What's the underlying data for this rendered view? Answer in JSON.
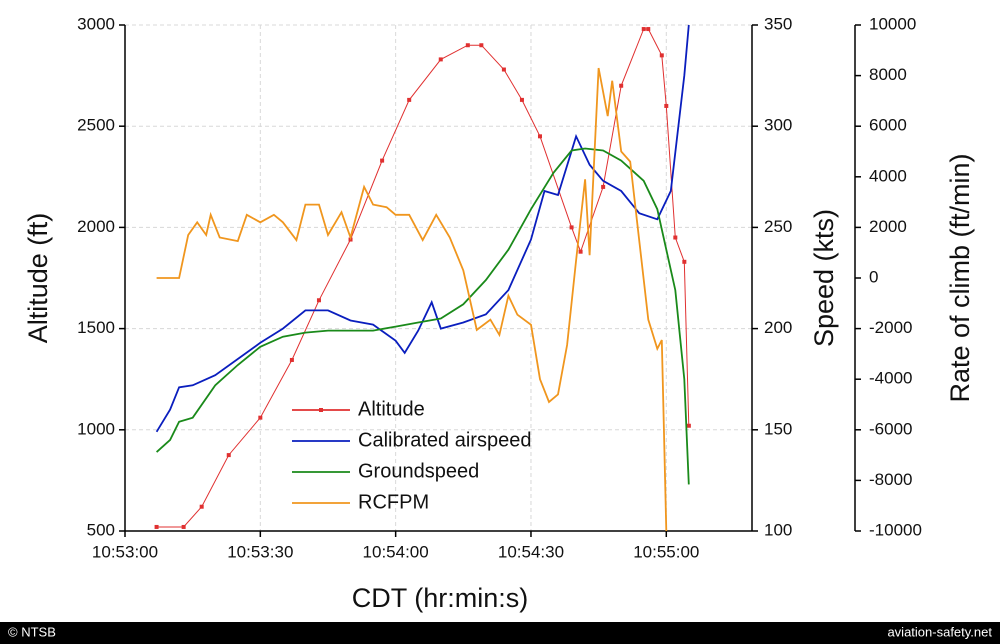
{
  "chart_data": {
    "type": "line",
    "xlabel": "CDT (hr:min:s)",
    "ylabel": "Altitude (ft)",
    "y2label": "Speed (kts)",
    "y3label": "Rate of climb (ft/min)",
    "xlim": [
      "10:53:00",
      "10:55:19"
    ],
    "xticks": [
      "10:53:00",
      "10:53:30",
      "10:54:00",
      "10:54:30",
      "10:55:00"
    ],
    "ylim": [
      500,
      3000
    ],
    "yticks": [
      500,
      1000,
      1500,
      2000,
      2500,
      3000
    ],
    "y2lim": [
      100,
      350
    ],
    "y2ticks": [
      100,
      150,
      200,
      250,
      300,
      350
    ],
    "y3lim": [
      -10000,
      10000
    ],
    "y3ticks": [
      -10000,
      -8000,
      -6000,
      -4000,
      -2000,
      0,
      2000,
      4000,
      6000,
      8000,
      10000
    ],
    "grid": true,
    "legend": "bottom-center",
    "series": [
      {
        "name": "Altitude",
        "color": "#e03030",
        "axis": "y",
        "markers": true,
        "x": [
          "10:53:07",
          "10:53:13",
          "10:53:17",
          "10:53:23",
          "10:53:30",
          "10:53:37",
          "10:53:43",
          "10:53:50",
          "10:53:57",
          "10:54:03",
          "10:54:10",
          "10:54:16",
          "10:54:19",
          "10:54:24",
          "10:54:28",
          "10:54:32",
          "10:54:39",
          "10:54:41",
          "10:54:46",
          "10:54:50",
          "10:54:55",
          "10:54:56",
          "10:54:59",
          "10:55:00",
          "10:55:02",
          "10:55:04",
          "10:55:05"
        ],
        "values": [
          520,
          520,
          620,
          875,
          1060,
          1345,
          1640,
          1940,
          2330,
          2630,
          2830,
          2900,
          2900,
          2780,
          2630,
          2450,
          2000,
          1880,
          2200,
          2700,
          2980,
          2980,
          2850,
          2600,
          1950,
          1830,
          1020
        ]
      },
      {
        "name": "Calibrated airspeed",
        "color": "#0a1ebe",
        "axis": "y2",
        "x": [
          "10:53:07",
          "10:53:10",
          "10:53:12",
          "10:53:15",
          "10:53:20",
          "10:53:25",
          "10:53:30",
          "10:53:35",
          "10:53:40",
          "10:53:45",
          "10:53:50",
          "10:53:55",
          "10:54:00",
          "10:54:02",
          "10:54:05",
          "10:54:08",
          "10:54:10",
          "10:54:15",
          "10:54:20",
          "10:54:25",
          "10:54:30",
          "10:54:33",
          "10:54:36",
          "10:54:40",
          "10:54:43",
          "10:54:46",
          "10:54:50",
          "10:54:54",
          "10:54:58",
          "10:55:01",
          "10:55:04",
          "10:55:05"
        ],
        "values": [
          149,
          160,
          171,
          172,
          177,
          185,
          193,
          200,
          209,
          209,
          204,
          202,
          194,
          188,
          199,
          213,
          200,
          203,
          207,
          219,
          244,
          268,
          266,
          295,
          281,
          273,
          268,
          257,
          254,
          268,
          325,
          350
        ]
      },
      {
        "name": "Groundspeed",
        "color": "#1a8a1a",
        "axis": "y2",
        "x": [
          "10:53:07",
          "10:53:10",
          "10:53:12",
          "10:53:15",
          "10:53:20",
          "10:53:25",
          "10:53:30",
          "10:53:35",
          "10:53:40",
          "10:53:45",
          "10:53:50",
          "10:53:55",
          "10:54:00",
          "10:54:05",
          "10:54:10",
          "10:54:15",
          "10:54:20",
          "10:54:25",
          "10:54:30",
          "10:54:35",
          "10:54:39",
          "10:54:42",
          "10:54:46",
          "10:54:50",
          "10:54:55",
          "10:54:58",
          "10:55:02",
          "10:55:04",
          "10:55:05"
        ],
        "values": [
          139,
          145,
          154,
          156,
          172,
          182,
          191,
          196,
          198,
          199,
          199,
          199,
          201,
          203,
          205,
          212,
          224,
          239,
          259,
          277,
          288,
          289,
          288,
          283,
          273,
          259,
          219,
          175,
          123
        ]
      },
      {
        "name": "RCFPM",
        "color": "#f0961e",
        "axis": "y3",
        "x": [
          "10:53:07",
          "10:53:12",
          "10:53:14",
          "10:53:16",
          "10:53:18",
          "10:53:19",
          "10:53:21",
          "10:53:25",
          "10:53:27",
          "10:53:30",
          "10:53:33",
          "10:53:35",
          "10:53:38",
          "10:53:40",
          "10:53:43",
          "10:53:45",
          "10:53:48",
          "10:53:50",
          "10:53:53",
          "10:53:55",
          "10:53:58",
          "10:54:00",
          "10:54:03",
          "10:54:06",
          "10:54:09",
          "10:54:12",
          "10:54:15",
          "10:54:18",
          "10:54:21",
          "10:54:23",
          "10:54:25",
          "10:54:27",
          "10:54:30",
          "10:54:32",
          "10:54:34",
          "10:54:36",
          "10:54:38",
          "10:54:40",
          "10:54:42",
          "10:54:43",
          "10:54:45",
          "10:54:47",
          "10:54:48",
          "10:54:50",
          "10:54:52",
          "10:54:56",
          "10:54:58",
          "10:54:59",
          "10:55:00"
        ],
        "values": [
          0,
          0,
          1700,
          2200,
          1700,
          2500,
          1600,
          1460,
          2500,
          2200,
          2500,
          2200,
          1500,
          2900,
          2900,
          1700,
          2600,
          1600,
          3600,
          2900,
          2800,
          2500,
          2500,
          1500,
          2500,
          1600,
          300,
          -2050,
          -1650,
          -2250,
          -700,
          -1450,
          -1850,
          -4000,
          -4900,
          -4600,
          -2650,
          700,
          3900,
          900,
          8300,
          6400,
          7800,
          5000,
          4600,
          -1650,
          -2800,
          -2450,
          -10000
        ]
      }
    ],
    "footer_left": "© NTSB",
    "footer_right": "aviation-safety.net"
  }
}
